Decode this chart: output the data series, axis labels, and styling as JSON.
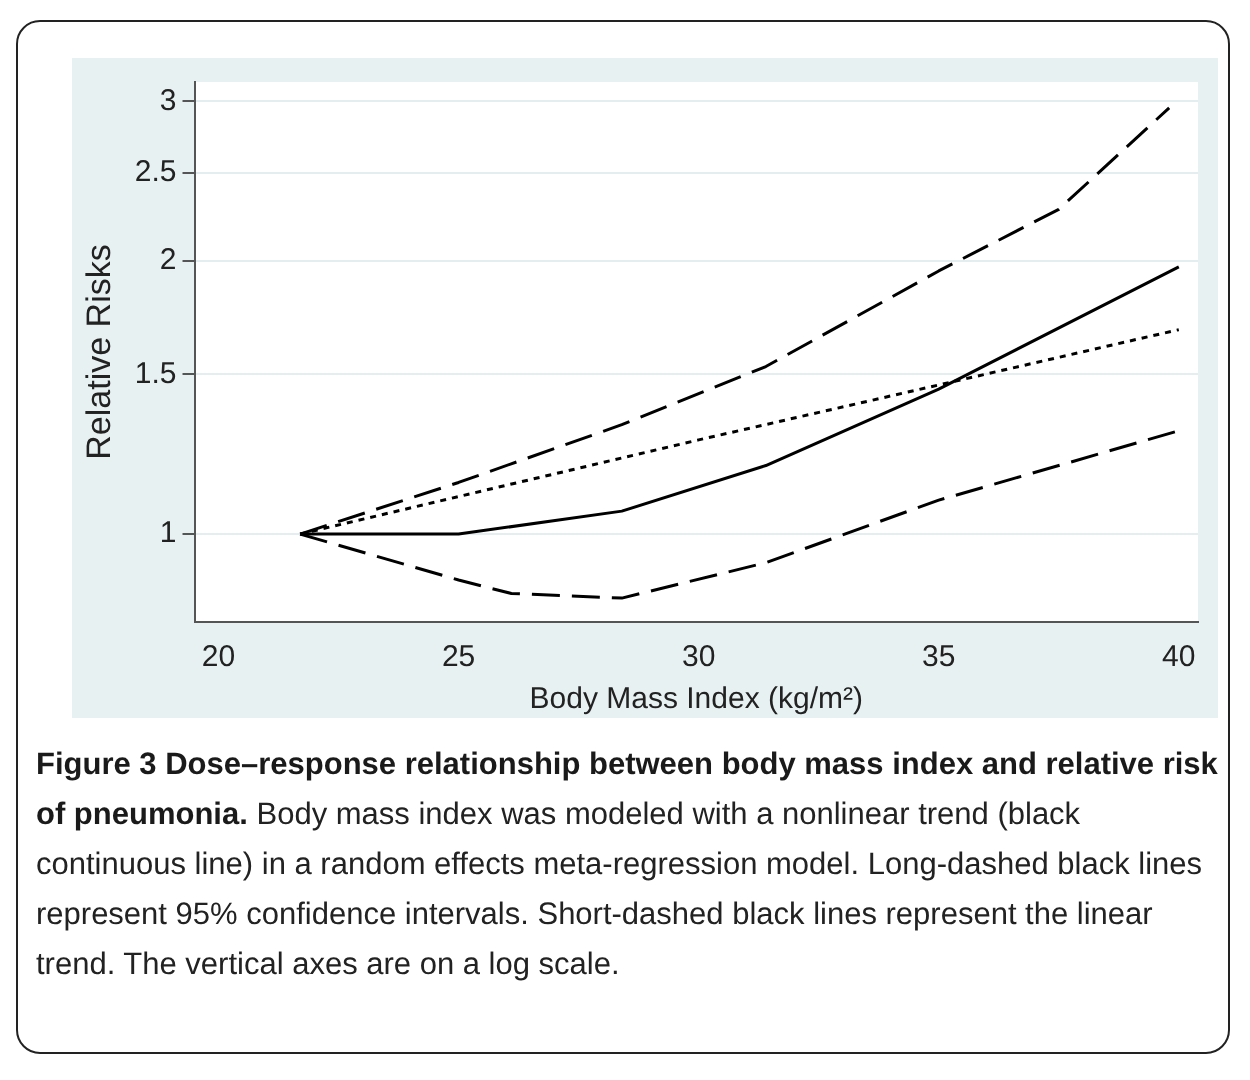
{
  "chart_data": {
    "type": "line",
    "title": "Figure 3 Dose–response relationship between body mass index and relative risk of pneumonia.",
    "annotations": [
      "Body mass index was modeled with a nonlinear trend (black continuous line) in a random effects meta-regression model. Long-dashed black lines represent 95% confidence intervals. Short-dashed black lines represent the linear trend. The vertical axes are on a log scale."
    ],
    "xlabel": "Body Mass Index (kg/m²)",
    "ylabel": "Relative Risks",
    "xlim": [
      19.5,
      40.4
    ],
    "xticks": [
      20,
      25,
      30,
      35,
      40
    ],
    "ylim": [
      0.8,
      3.15
    ],
    "yticks": [
      1,
      1.5,
      2,
      2.5,
      3
    ],
    "log": "y",
    "grid": "y",
    "legend": false,
    "marker": "none",
    "series": [
      {
        "color": "#000000",
        "line_style": "solid",
        "x": [
          21.7,
          25,
          28.4,
          31.4,
          35,
          40
        ],
        "values": [
          1,
          1,
          1.06,
          1.19,
          1.445,
          1.97
        ]
      },
      {
        "color": "#000000",
        "line_style": "dashed",
        "x": [
          21.7,
          25,
          28.4,
          31.4,
          35,
          37.5,
          39.8
        ],
        "values": [
          1,
          1.14,
          1.32,
          1.53,
          1.95,
          2.28,
          2.95
        ]
      },
      {
        "color": "#000000",
        "line_style": "dashed",
        "x": [
          21.7,
          25,
          26.1,
          28.4,
          31.4,
          35,
          37.5,
          40
        ],
        "values": [
          1,
          0.89,
          0.86,
          0.85,
          0.93,
          1.09,
          1.19,
          1.3
        ]
      },
      {
        "color": "#000000",
        "line_style": "dotted",
        "x": [
          21.7,
          25,
          30,
          35,
          40
        ],
        "values": [
          1,
          1.1,
          1.27,
          1.46,
          1.68
        ]
      }
    ]
  }
}
